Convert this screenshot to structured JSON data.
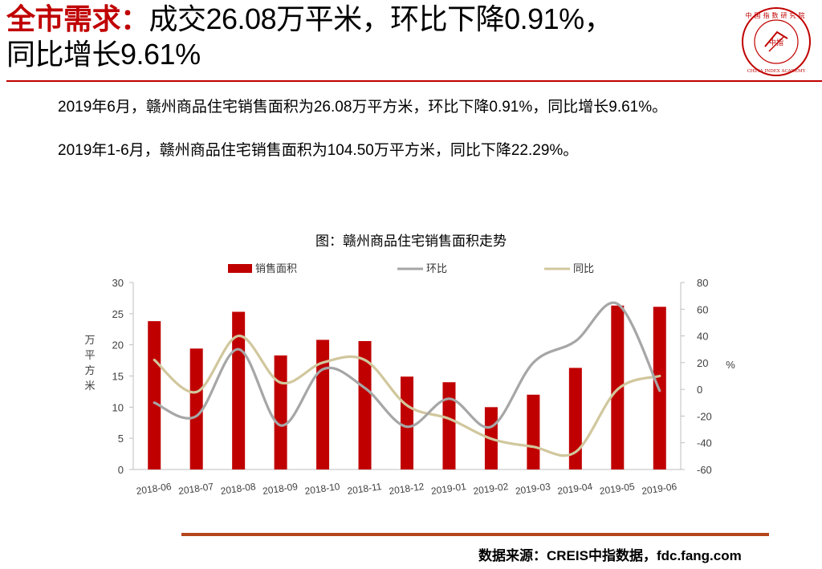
{
  "header": {
    "title_highlight": "全市需求：",
    "title_line1_rest": "成交26.08万平米，环比下降0.91%，",
    "title_line2": "同比增长9.61%",
    "accent_color": "#c00000"
  },
  "logo": {
    "icon": "china-index-academy-seal-icon",
    "top_text": "中国指数研究院",
    "center_text": "中指",
    "bottom_text": "CHINA INDEX ACADEMY"
  },
  "paragraphs": [
    "2019年6月，赣州商品住宅销售面积为26.08万平方米，环比下降0.91%，同比增长9.61%。",
    "2019年1-6月，赣州商品住宅销售面积为104.50万平方米，同比下降22.29%。"
  ],
  "chart_data": {
    "type": "bar",
    "title": "图：赣州商品住宅销售面积走势",
    "categories": [
      "2018-06",
      "2018-07",
      "2018-08",
      "2018-09",
      "2018-10",
      "2018-11",
      "2018-12",
      "2019-01",
      "2019-02",
      "2019-03",
      "2019-04",
      "2019-05",
      "2019-06"
    ],
    "ylabel": "万平方米",
    "y2label": "%",
    "ylim": [
      0,
      30
    ],
    "y2lim": [
      -60,
      80
    ],
    "yticks": [
      0,
      5,
      10,
      15,
      20,
      25,
      30
    ],
    "y2ticks": [
      -60,
      -40,
      -20,
      0,
      20,
      40,
      60,
      80
    ],
    "legend_position": "top",
    "grid": false,
    "series": [
      {
        "name": "销售面积",
        "type": "bar",
        "axis": "left",
        "color": "#c00000",
        "values": [
          23.8,
          19.4,
          25.3,
          18.3,
          20.8,
          20.6,
          14.9,
          14.0,
          10.0,
          12.0,
          16.3,
          26.3,
          26.1
        ]
      },
      {
        "name": "环比",
        "type": "line",
        "axis": "right",
        "color": "#a6a6a6",
        "values": [
          -10,
          -20,
          30,
          -27,
          15,
          1,
          -28,
          -7,
          -28,
          20,
          36,
          64,
          -1
        ]
      },
      {
        "name": "同比",
        "type": "line",
        "axis": "right",
        "color": "#d1c79d",
        "values": [
          22,
          -2,
          40,
          5,
          20,
          22,
          -12,
          -22,
          -37,
          -43,
          -47,
          0,
          10
        ]
      }
    ]
  },
  "footer": {
    "source": "数据来源：CREIS中指数据，fdc.fang.com",
    "rule_color": "#b5451b"
  }
}
